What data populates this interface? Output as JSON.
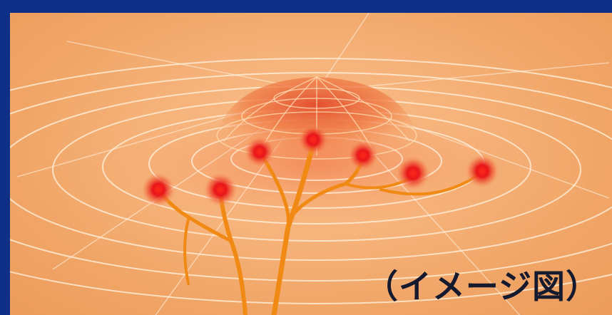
{
  "caption": "（イメージ図）",
  "colors": {
    "frame": "#0d2f86",
    "background": "#f6b47c",
    "ring": "#fff3e0",
    "dome": "#e8663a",
    "branch": "#f08a14",
    "node": "#e8161a",
    "caption": "#161a2e"
  },
  "nodes": [
    {
      "id": 1
    },
    {
      "id": 2
    },
    {
      "id": 3
    },
    {
      "id": 4
    },
    {
      "id": 5
    },
    {
      "id": 6
    },
    {
      "id": 7
    }
  ]
}
